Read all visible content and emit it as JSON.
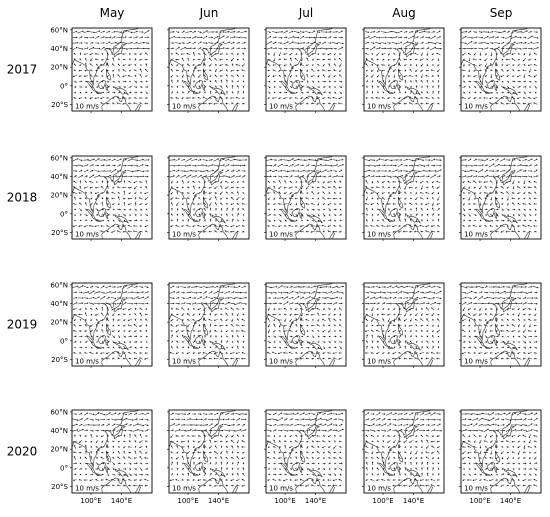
{
  "months": [
    "May",
    "Jun",
    "Jul",
    "Aug",
    "Sep"
  ],
  "years": [
    "2017",
    "2018",
    "2019",
    "2020"
  ],
  "lat_ticks": [
    "60°N",
    "40°N",
    "20°N",
    "0°",
    "20°S"
  ],
  "lon_ticks": [
    "100°E",
    "140°E"
  ],
  "reference_vector_label": "10 m/s",
  "colors": {
    "frame": "#000000",
    "coast": "#333333",
    "arrow": "#222222",
    "grid": "#bbbbbb"
  }
}
